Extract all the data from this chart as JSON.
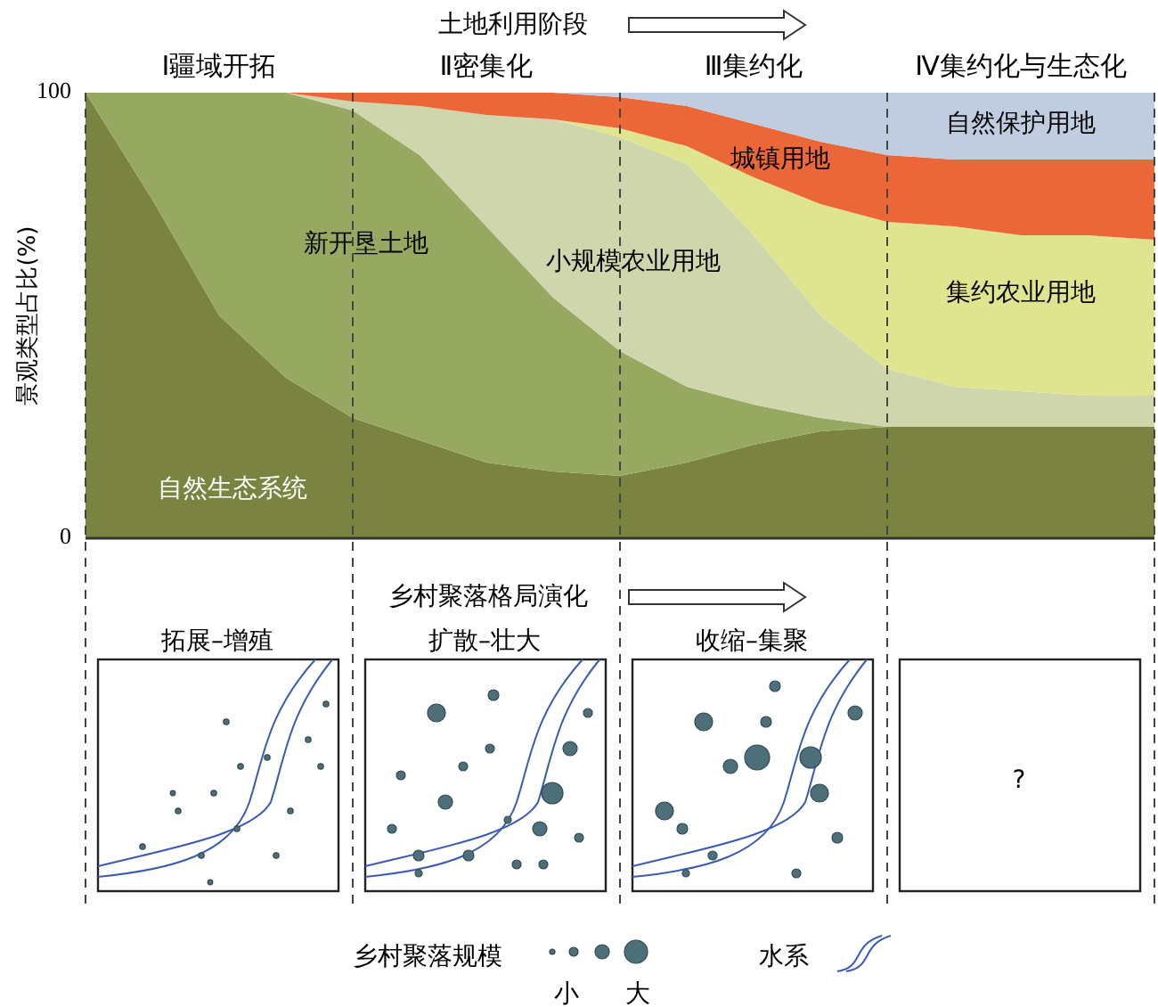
{
  "chart_data": [
    {
      "type": "area",
      "stacked": true,
      "title": "土地利用阶段",
      "ylabel": "景观类型占比(%)",
      "categories": [
        null,
        null,
        null,
        null,
        null,
        null,
        null,
        null,
        null,
        null,
        null,
        null,
        null,
        null,
        null,
        null,
        null
      ],
      "ylim": [
        0,
        100
      ],
      "yticks": [
        0,
        100
      ],
      "tick_labels": "y",
      "grid": "x",
      "legend": false,
      "series": [
        {
          "name": "自然生态系统",
          "color": "#7b8341",
          "values": [
            100,
            76,
            50,
            36,
            27,
            22,
            17,
            15,
            14,
            17,
            21,
            24,
            25,
            25,
            25,
            25,
            25
          ]
        },
        {
          "name": "新开垦土地",
          "color": "#97a961",
          "values": [
            0,
            24,
            50,
            64,
            69,
            64,
            53,
            39,
            28,
            17,
            9,
            3,
            0,
            0,
            0,
            0,
            0
          ]
        },
        {
          "name": "小规模农业用地",
          "color": "#cfd6ac",
          "values": [
            0,
            0,
            0,
            0,
            2,
            11,
            25,
            40,
            48,
            50,
            38,
            23,
            13,
            9,
            8,
            7,
            7
          ]
        },
        {
          "name": "集约农业用地",
          "color": "#dfe48e",
          "values": [
            0,
            0,
            0,
            0,
            0,
            0,
            0,
            0,
            2,
            4,
            13,
            25,
            33,
            36,
            35,
            36,
            35
          ]
        },
        {
          "name": "城镇用地",
          "color": "#ec6737",
          "values": [
            0,
            0,
            0,
            0,
            2,
            3,
            5,
            6,
            7,
            9,
            12,
            14,
            15,
            15,
            17,
            17,
            18
          ]
        },
        {
          "name": "自然保护用地",
          "color": "#c0cde0",
          "values": [
            0,
            0,
            0,
            0,
            0,
            0,
            0,
            0,
            1,
            3,
            7,
            11,
            14,
            15,
            15,
            15,
            15
          ]
        }
      ],
      "annotations": [
        "Ⅰ疆域开拓",
        "Ⅱ密集化",
        "Ⅲ集约化",
        "Ⅳ集约化与生态化"
      ]
    },
    {
      "type": "other",
      "title": "乡村聚落格局演化",
      "annotations": [
        "拓展–增殖",
        "扩散–壮大",
        "收缩–集聚",
        "?",
        "乡村聚落规模",
        "小",
        "大",
        "水系"
      ]
    }
  ]
}
